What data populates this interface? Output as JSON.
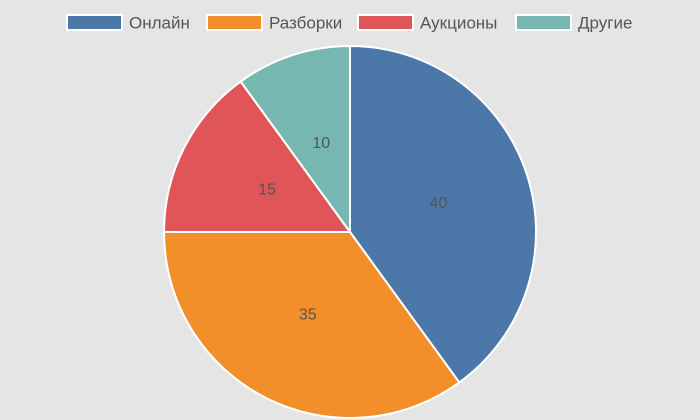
{
  "chart_data": {
    "type": "pie",
    "title": "",
    "categories": [
      "Онлайн",
      "Разборки",
      "Аукционы",
      "Другие"
    ],
    "values": [
      40,
      35,
      15,
      10
    ],
    "colors": [
      "#4c77a9",
      "#f28f2a",
      "#e05557",
      "#76b8b1"
    ],
    "data_labels": [
      "40",
      "35",
      "15",
      "10"
    ],
    "legend_position": "top",
    "start_angle": "12 o'clock",
    "direction": "clockwise"
  }
}
